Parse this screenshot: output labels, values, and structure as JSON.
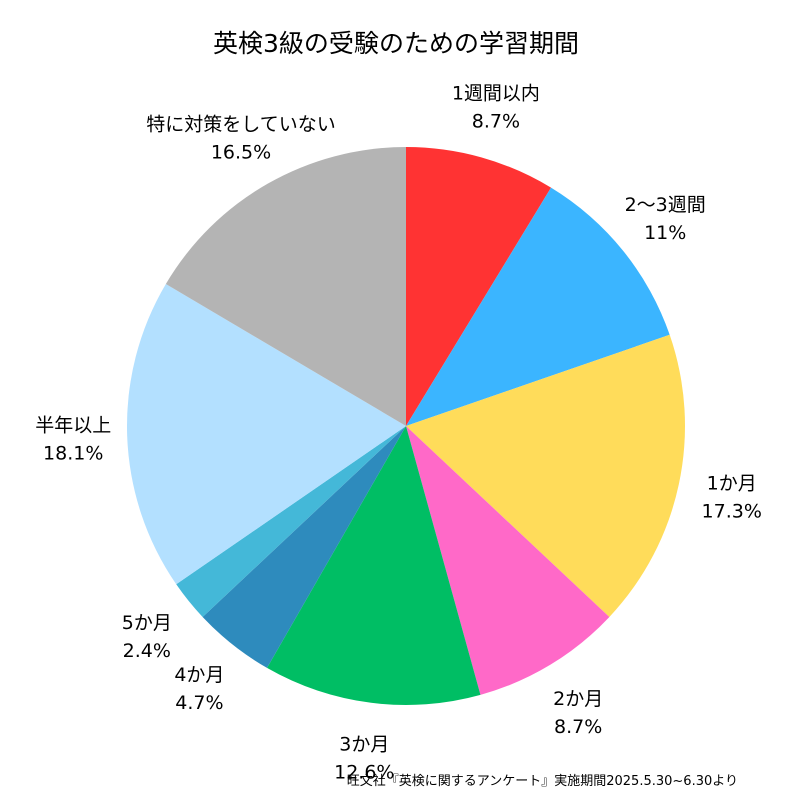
{
  "chart_data": {
    "type": "pie",
    "title": "英検3級の受験のための学習期間",
    "start_angle": "top",
    "direction": "clockwise",
    "slices": [
      {
        "label": "1週間以内",
        "value": 8.7,
        "value_label": "8.7%",
        "color": "#FF3333"
      },
      {
        "label": "2〜3週間",
        "value": 11,
        "value_label": "11%",
        "color": "#3BB5FF"
      },
      {
        "label": "1か月",
        "value": 17.3,
        "value_label": "17.3%",
        "color": "#FFDC5A"
      },
      {
        "label": "2か月",
        "value": 8.7,
        "value_label": "8.7%",
        "color": "#FF69C8"
      },
      {
        "label": "3か月",
        "value": 12.6,
        "value_label": "12.6%",
        "color": "#00BE64"
      },
      {
        "label": "4か月",
        "value": 4.7,
        "value_label": "4.7%",
        "color": "#2E8BBD"
      },
      {
        "label": "5か月",
        "value": 2.4,
        "value_label": "2.4%",
        "color": "#44B8D8"
      },
      {
        "label": "半年以上",
        "value": 18.1,
        "value_label": "18.1%",
        "color": "#B3E0FF"
      },
      {
        "label": "特に対策をしていない",
        "value": 16.5,
        "value_label": "16.5%",
        "color": "#B4B4B4"
      }
    ],
    "source": "旺文社『英検に関するアンケート』実施期間2025.5.30~6.30より"
  }
}
